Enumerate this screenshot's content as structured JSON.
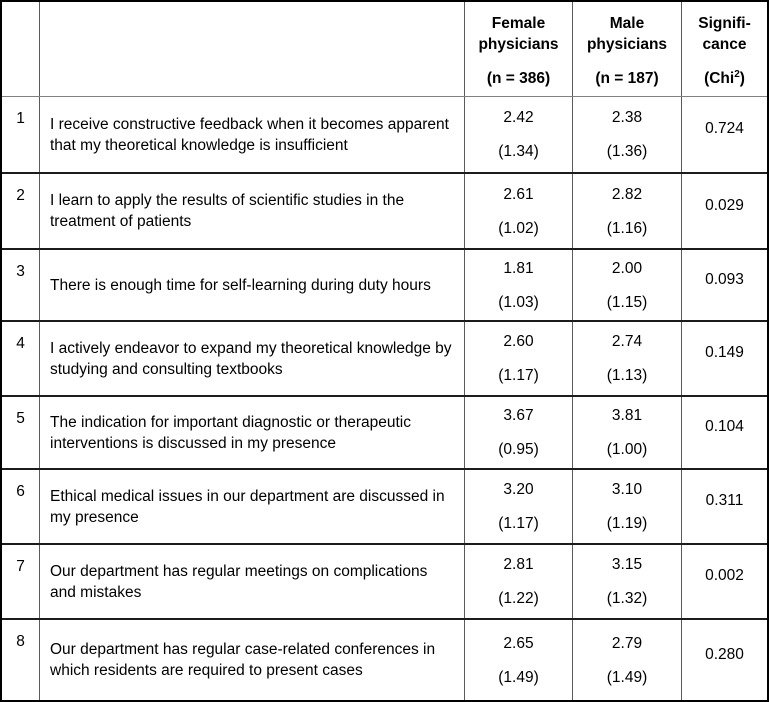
{
  "table": {
    "header": {
      "row_number_header": "",
      "statement_header": "",
      "female": {
        "line1": "Female",
        "line2": "physicians",
        "n": "(n = 386)"
      },
      "male": {
        "line1": "Male",
        "line2": "physicians",
        "n": "(n = 187)"
      },
      "significance": {
        "line1": "Signifi-",
        "line2": "cance",
        "chi_prefix": "(Chi",
        "chi_sup": "2",
        "chi_suffix": ")"
      }
    },
    "rows": [
      {
        "num": "1",
        "statement": "I receive constructive feedback when it becomes apparent that my theoretical knowledge is insufficient",
        "female_mean": "2.42",
        "female_sd": "(1.34)",
        "male_mean": "2.38",
        "male_sd": "(1.36)",
        "sig": "0.724"
      },
      {
        "num": "2",
        "statement": "I learn to apply the results of scientific studies in the treatment of patients",
        "female_mean": "2.61",
        "female_sd": "(1.02)",
        "male_mean": "2.82",
        "male_sd": "(1.16)",
        "sig": "0.029"
      },
      {
        "num": "3",
        "statement": "There is enough time for self-learning during duty hours",
        "female_mean": "1.81",
        "female_sd": "(1.03)",
        "male_mean": "2.00",
        "male_sd": "(1.15)",
        "sig": "0.093"
      },
      {
        "num": "4",
        "statement": "I actively endeavor to expand my theoretical knowledge by studying and consulting textbooks",
        "female_mean": "2.60",
        "female_sd": "(1.17)",
        "male_mean": "2.74",
        "male_sd": "(1.13)",
        "sig": "0.149"
      },
      {
        "num": "5",
        "statement": "The indication for important diagnostic or therapeutic interventions is discussed in my presence",
        "female_mean": "3.67",
        "female_sd": "(0.95)",
        "male_mean": "3.81",
        "male_sd": "(1.00)",
        "sig": "0.104"
      },
      {
        "num": "6",
        "statement": "Ethical medical issues in our department are discussed in my presence",
        "female_mean": "3.20",
        "female_sd": "(1.17)",
        "male_mean": "3.10",
        "male_sd": "(1.19)",
        "sig": "0.311"
      },
      {
        "num": "7",
        "statement": "Our department has regular meetings on complications and mistakes",
        "female_mean": "2.81",
        "female_sd": "(1.22)",
        "male_mean": "3.15",
        "male_sd": "(1.32)",
        "sig": "0.002"
      },
      {
        "num": "8",
        "statement": "Our department has regular case-related conferences in which residents are required to present cases",
        "female_mean": "2.65",
        "female_sd": "(1.49)",
        "male_mean": "2.79",
        "male_sd": "(1.49)",
        "sig": "0.280"
      }
    ]
  },
  "colors": {
    "outer_border": "#000000",
    "row_separator": "#1c1c1c",
    "column_separator": "#5a5a5a",
    "header_separator": "#808080",
    "background": "#ffffff",
    "text": "#000000"
  }
}
